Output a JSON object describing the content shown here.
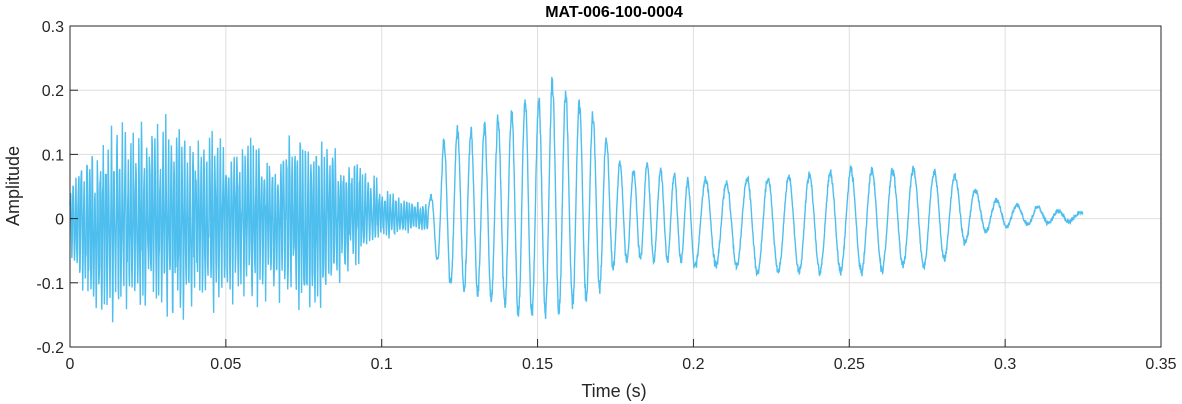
{
  "chart_data": {
    "type": "line",
    "title": "MAT-006-100-0004",
    "xlabel": "Time (s)",
    "ylabel": "Amplitude",
    "xlim": [
      0,
      0.35
    ],
    "ylim": [
      -0.2,
      0.3
    ],
    "xticks": [
      0,
      0.05,
      0.1,
      0.15,
      0.2,
      0.25,
      0.3,
      0.35
    ],
    "xtick_labels": [
      "0",
      "0.05",
      "0.1",
      "0.15",
      "0.2",
      "0.25",
      "0.3",
      "0.35"
    ],
    "yticks": [
      -0.2,
      -0.1,
      0,
      0.1,
      0.2,
      0.3
    ],
    "ytick_labels": [
      "-0.2",
      "-0.1",
      "0",
      "0.1",
      "0.2",
      "0.3"
    ],
    "grid": true,
    "series_color": "#4DBEEE",
    "series": [
      {
        "x": [
          0,
          0.005,
          0.01,
          0.015,
          0.02,
          0.025,
          0.03,
          0.035,
          0.04,
          0.045,
          0.05,
          0.055,
          0.06,
          0.065,
          0.07,
          0.075,
          0.08,
          0.085,
          0.09,
          0.095,
          0.1,
          0.105,
          0.11,
          0.115,
          0.12,
          0.125,
          0.13,
          0.135,
          0.14,
          0.145,
          0.15,
          0.155,
          0.16,
          0.165,
          0.17,
          0.175,
          0.18,
          0.185,
          0.19,
          0.195,
          0.2,
          0.205,
          0.21,
          0.215,
          0.22,
          0.225,
          0.23,
          0.235,
          0.24,
          0.245,
          0.25,
          0.255,
          0.26,
          0.265,
          0.27,
          0.275,
          0.28,
          0.285,
          0.29,
          0.295,
          0.3,
          0.305,
          0.31,
          0.315,
          0.32,
          0.325
        ],
        "env_max": [
          0.05,
          0.12,
          0.11,
          0.14,
          0.13,
          0.15,
          0.14,
          0.13,
          0.12,
          0.14,
          0.13,
          0.12,
          0.11,
          0.1,
          0.13,
          0.12,
          0.13,
          0.11,
          0.1,
          0.08,
          0.05,
          0.03,
          0.03,
          0.02,
          0.13,
          0.15,
          0.14,
          0.16,
          0.17,
          0.2,
          0.19,
          0.23,
          0.2,
          0.19,
          0.16,
          0.1,
          0.08,
          0.09,
          0.08,
          0.07,
          0.06,
          0.07,
          0.06,
          0.07,
          0.065,
          0.07,
          0.07,
          0.075,
          0.07,
          0.08,
          0.08,
          0.08,
          0.08,
          0.08,
          0.085,
          0.08,
          0.08,
          0.07,
          0.05,
          0.03,
          0.03,
          0.02,
          0.02,
          0.015,
          0.01,
          0.01
        ],
        "env_min": [
          -0.05,
          -0.14,
          -0.15,
          -0.13,
          -0.14,
          -0.14,
          -0.13,
          -0.15,
          -0.12,
          -0.13,
          -0.12,
          -0.11,
          -0.12,
          -0.11,
          -0.12,
          -0.13,
          -0.14,
          -0.1,
          -0.08,
          -0.05,
          -0.03,
          -0.03,
          -0.02,
          -0.02,
          -0.11,
          -0.12,
          -0.12,
          -0.14,
          -0.15,
          -0.17,
          -0.16,
          -0.16,
          -0.15,
          -0.14,
          -0.12,
          -0.08,
          -0.07,
          -0.07,
          -0.07,
          -0.07,
          -0.08,
          -0.08,
          -0.08,
          -0.08,
          -0.09,
          -0.09,
          -0.09,
          -0.09,
          -0.09,
          -0.09,
          -0.09,
          -0.09,
          -0.09,
          -0.08,
          -0.08,
          -0.08,
          -0.07,
          -0.05,
          -0.03,
          -0.02,
          -0.015,
          -0.01,
          -0.01,
          -0.008,
          -0.005,
          -0.005
        ]
      }
    ]
  }
}
